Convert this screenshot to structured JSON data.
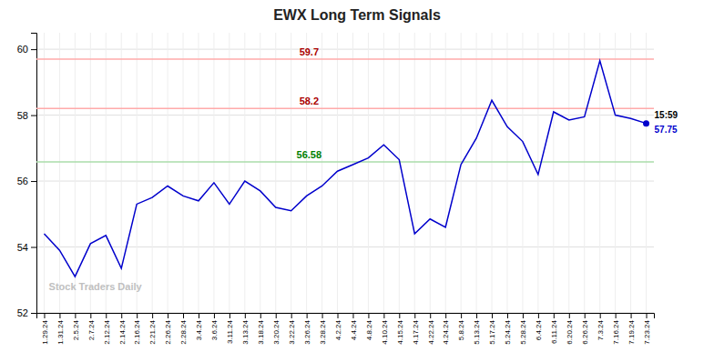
{
  "chart_data": {
    "type": "line",
    "title": "EWX Long Term Signals",
    "categories": [
      "1.29.24",
      "1.31.24",
      "2.5.24",
      "2.7.24",
      "2.12.24",
      "2.14.24",
      "2.16.24",
      "2.21.24",
      "2.26.24",
      "2.28.24",
      "3.4.24",
      "3.6.24",
      "3.11.24",
      "3.13.24",
      "3.18.24",
      "3.20.24",
      "3.22.24",
      "3.26.24",
      "3.28.24",
      "4.2.24",
      "4.4.24",
      "4.8.24",
      "4.10.24",
      "4.15.24",
      "4.17.24",
      "4.22.24",
      "4.24.24",
      "5.8.24",
      "5.13.24",
      "5.17.24",
      "5.24.24",
      "5.28.24",
      "6.4.24",
      "6.11.24",
      "6.20.24",
      "6.26.24",
      "7.3.24",
      "7.16.24",
      "7.19.24",
      "7.23.24"
    ],
    "values": [
      54.4,
      53.9,
      53.1,
      54.1,
      54.35,
      53.35,
      55.3,
      55.5,
      55.85,
      55.55,
      55.4,
      55.95,
      55.3,
      56.0,
      55.7,
      55.2,
      55.1,
      55.55,
      55.85,
      56.3,
      56.5,
      56.7,
      57.1,
      56.65,
      54.4,
      54.85,
      54.6,
      56.5,
      57.3,
      58.45,
      57.65,
      57.2,
      56.2,
      58.1,
      57.85,
      57.95,
      59.65,
      58.0,
      57.9,
      57.75
    ],
    "color": "#0000cc",
    "ylim": [
      52,
      60.5
    ],
    "yticks": [
      52,
      54,
      56,
      58,
      60
    ],
    "grid": true,
    "annotations": [
      {
        "type": "hline",
        "y": 59.7,
        "text": "59.7",
        "color": "#ffaaaa",
        "label_color": "#aa0000"
      },
      {
        "type": "hline",
        "y": 58.2,
        "text": "58.2",
        "color": "#ffaaaa",
        "label_color": "#aa0000"
      },
      {
        "type": "hline",
        "y": 56.58,
        "text": "56.58",
        "color": "#aaddaa",
        "label_color": "green"
      },
      {
        "type": "last_value",
        "time": "15:59",
        "price": "57.75"
      },
      {
        "type": "watermark",
        "text": "Stock Traders Daily",
        "color": "#c0c0c0"
      }
    ]
  }
}
